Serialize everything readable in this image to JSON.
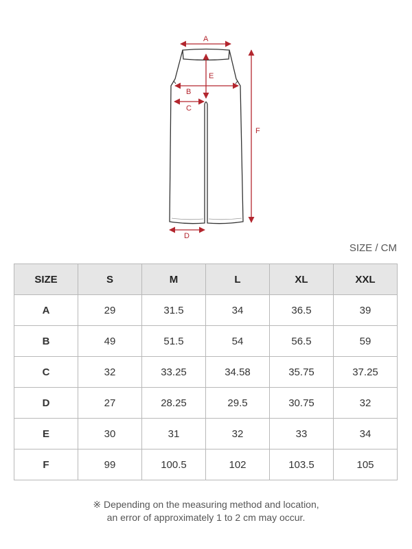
{
  "diagram": {
    "labels": {
      "A": "A",
      "B": "B",
      "C": "C",
      "D": "D",
      "E": "E",
      "F": "F"
    },
    "accent_color": "#b3262e"
  },
  "unit_label": "SIZE / CM",
  "table": {
    "headers": [
      "SIZE",
      "S",
      "M",
      "L",
      "XL",
      "XXL"
    ],
    "rows": [
      {
        "label": "A",
        "values": [
          "29",
          "31.5",
          "34",
          "36.5",
          "39"
        ]
      },
      {
        "label": "B",
        "values": [
          "49",
          "51.5",
          "54",
          "56.5",
          "59"
        ]
      },
      {
        "label": "C",
        "values": [
          "32",
          "33.25",
          "34.58",
          "35.75",
          "37.25"
        ]
      },
      {
        "label": "D",
        "values": [
          "27",
          "28.25",
          "29.5",
          "30.75",
          "32"
        ]
      },
      {
        "label": "E",
        "values": [
          "30",
          "31",
          "32",
          "33",
          "34"
        ]
      },
      {
        "label": "F",
        "values": [
          "99",
          "100.5",
          "102",
          "103.5",
          "105"
        ]
      }
    ]
  },
  "note": {
    "line1": "※ Depending on the measuring method and location,",
    "line2": "an error of approximately 1 to 2 cm may occur."
  }
}
